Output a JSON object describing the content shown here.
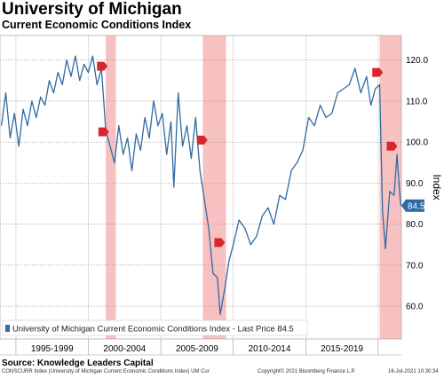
{
  "header": {
    "title": "University of Michigan",
    "subtitle": "Current Economic Conditions Index"
  },
  "source": "Source: Knowledge Leaders Capital",
  "footer": {
    "left": "CONSCURR Index (University of Michigan Current Economic Conditions Index) UM Cur",
    "center": "Copyright© 2021 Bloomberg Finance L.P.",
    "right": "16-Jul-2021 10:30:34"
  },
  "colors": {
    "line": "#2f6aa3",
    "recession": "#f7b6b6",
    "marker": "#d8262e",
    "last_price_badge": "#2f6aa3",
    "grid": "#999999"
  },
  "chart_data": {
    "type": "line",
    "title": "University of Michigan",
    "subtitle": "Current Economic Conditions Index",
    "ylabel": "Index",
    "ylim": [
      52,
      126
    ],
    "xlim": [
      1993.9,
      2021.6
    ],
    "yticks": [
      60,
      70,
      80,
      90,
      100,
      110,
      120
    ],
    "ytick_labels": [
      "60.0",
      "70.0",
      "80.0",
      "90.0",
      "100.0",
      "110.0",
      "120.0"
    ],
    "xtick_labels": [
      "1995-1999",
      "2000-2004",
      "2005-2009",
      "2010-2014",
      "2015-2019"
    ],
    "xtick_centers": [
      1997.5,
      2002.5,
      2007.5,
      2012.5,
      2017.5
    ],
    "grid": true,
    "legend_position": "bottom-left",
    "legend": "University of Michigan Current Economic Conditions Index - Last Price 84.5",
    "last_price": 84.5,
    "last_price_label": "84.5",
    "recession_bands": [
      [
        2001.2,
        2001.9
      ],
      [
        2007.9,
        2009.5
      ],
      [
        2020.1,
        2021.6
      ]
    ],
    "markers": [
      {
        "x": 2000.9,
        "y": 118.5
      },
      {
        "x": 2001.0,
        "y": 102.5
      },
      {
        "x": 2007.8,
        "y": 100.5
      },
      {
        "x": 2009.0,
        "y": 75.5
      },
      {
        "x": 2019.9,
        "y": 117.0
      },
      {
        "x": 2020.9,
        "y": 99.0
      }
    ],
    "series": [
      {
        "name": "University of Michigan Current Economic Conditions Index",
        "x": [
          1994.0,
          1994.3,
          1994.6,
          1994.9,
          1995.2,
          1995.5,
          1995.8,
          1996.1,
          1996.4,
          1996.7,
          1997.0,
          1997.3,
          1997.6,
          1997.9,
          1998.2,
          1998.5,
          1998.8,
          1999.1,
          1999.4,
          1999.7,
          2000.0,
          2000.3,
          2000.6,
          2000.9,
          2001.2,
          2001.5,
          2001.8,
          2002.1,
          2002.4,
          2002.7,
          2003.0,
          2003.3,
          2003.6,
          2003.9,
          2004.2,
          2004.5,
          2004.8,
          2005.1,
          2005.4,
          2005.7,
          2005.9,
          2006.2,
          2006.5,
          2006.8,
          2007.1,
          2007.4,
          2007.7,
          2008.0,
          2008.3,
          2008.6,
          2008.9,
          2009.1,
          2009.4,
          2009.7,
          2010.0,
          2010.4,
          2010.8,
          2011.2,
          2011.6,
          2012.0,
          2012.4,
          2012.8,
          2013.2,
          2013.6,
          2014.0,
          2014.4,
          2014.8,
          2015.2,
          2015.6,
          2016.0,
          2016.4,
          2016.8,
          2017.2,
          2017.6,
          2018.0,
          2018.4,
          2018.8,
          2019.2,
          2019.5,
          2019.8,
          2020.1,
          2020.3,
          2020.5,
          2020.8,
          2021.1,
          2021.3,
          2021.45,
          2021.55
        ],
        "values": [
          104,
          112,
          101,
          107,
          99,
          108,
          104,
          110,
          106,
          111,
          109,
          115,
          112,
          117,
          114,
          120,
          116,
          121,
          115,
          119,
          117,
          121,
          114,
          118,
          103,
          99,
          95,
          104,
          97,
          101,
          93,
          102,
          98,
          106,
          101,
          110,
          104,
          107,
          97,
          105,
          89,
          112,
          99,
          104,
          96,
          106,
          93,
          86,
          79,
          68,
          67,
          58,
          64,
          71,
          75,
          81,
          79,
          75,
          77,
          82,
          84,
          80,
          87,
          86,
          93,
          95,
          98,
          106,
          104,
          109,
          106,
          107,
          112,
          113,
          114,
          118,
          112,
          116,
          109,
          113,
          114,
          83,
          74,
          88,
          87,
          97,
          89,
          84.5
        ]
      }
    ]
  }
}
